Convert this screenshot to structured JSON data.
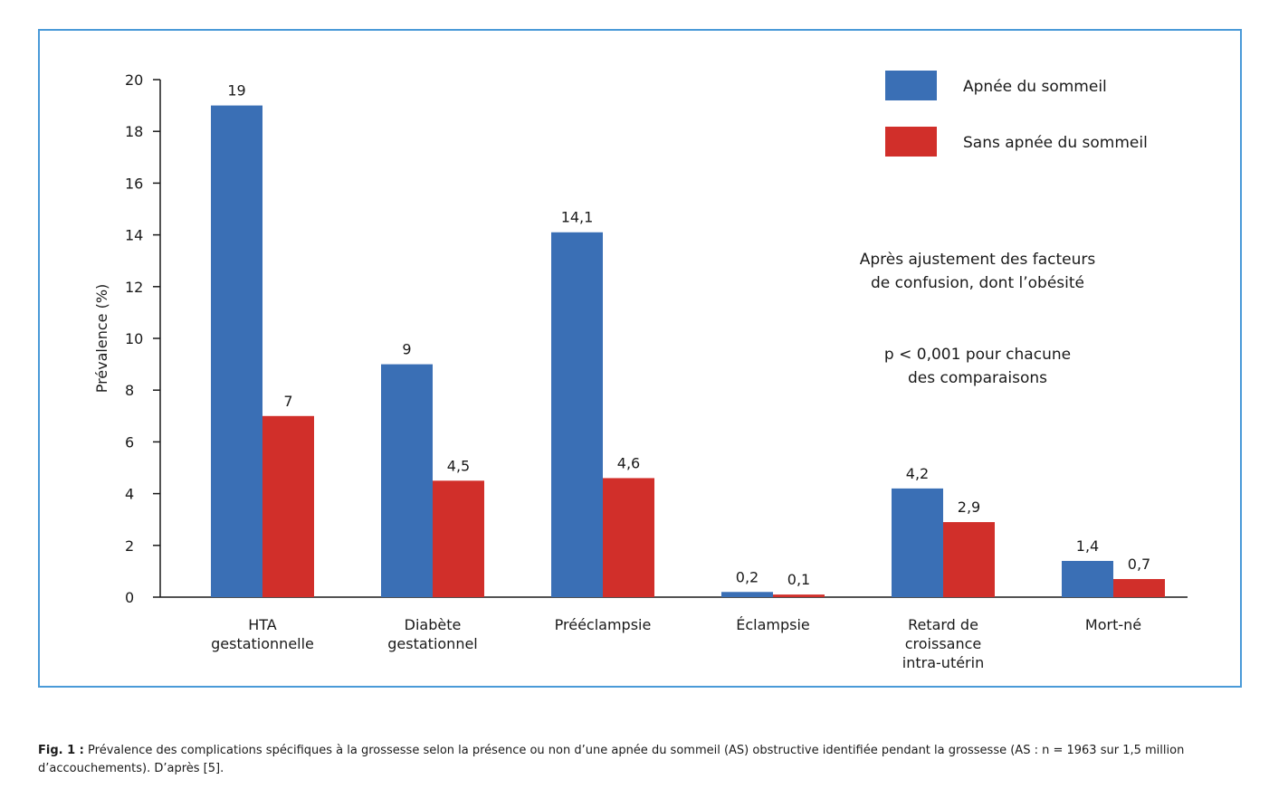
{
  "chart_data": {
    "type": "bar",
    "categories": [
      [
        "HTA",
        "gestationnelle"
      ],
      [
        "Diabète",
        "gestationnel"
      ],
      [
        "Prééclampsie"
      ],
      [
        "Éclampsie"
      ],
      [
        "Retard de",
        "croissance",
        "intra-utérin"
      ],
      [
        "Mort-né"
      ]
    ],
    "series": [
      {
        "name": "Apnée du sommeil",
        "color": "#3a6fb5",
        "values": [
          19,
          9,
          14.1,
          0.2,
          4.2,
          1.4
        ],
        "labels": [
          "19",
          "9",
          "14,1",
          "0,2",
          "4,2",
          "1,4"
        ]
      },
      {
        "name": "Sans apnée du sommeil",
        "color": "#d12f2a",
        "values": [
          7,
          4.5,
          4.6,
          0.1,
          2.9,
          0.7
        ],
        "labels": [
          "7",
          "4,5",
          "4,6",
          "0,1",
          "2,9",
          "0,7"
        ]
      }
    ],
    "ylabel": "Prévalence (%)",
    "ylim": [
      0,
      20
    ],
    "yticks": [
      0,
      2,
      4,
      6,
      8,
      10,
      12,
      14,
      16,
      18,
      20
    ],
    "grid": false,
    "legend": "top-right",
    "annotations": [
      [
        "Après ajustement des facteurs",
        "de confusion, dont l’obésité"
      ],
      [
        "p < 0,001 pour chacune",
        "des comparaisons"
      ]
    ]
  },
  "caption": {
    "label": "Fig. 1 :",
    "text": " Prévalence des complications spécifiques à la grossesse selon la présence ou non d’une apnée du sommeil (AS) obstructive identifiée pendant la grossesse (AS : n = 1963 sur 1,5 million d’accouchements). D’après [5]."
  }
}
